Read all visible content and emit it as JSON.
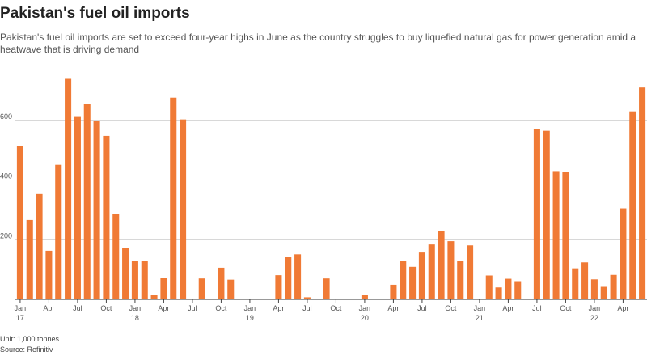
{
  "chart_data": {
    "type": "bar",
    "title": "Pakistan's fuel oil imports",
    "subtitle": "Pakistan's fuel oil imports are set to exceed four-year highs in June as the country struggles to buy liquefied natural gas for power generation amid a heatwave that is driving demand",
    "unit_note": "Unit: 1,000 tonnes",
    "source": "Source: Refinitiv",
    "color": "#f07a35",
    "categories": [
      "Jan\n17",
      null,
      null,
      "Apr",
      null,
      null,
      "Jul",
      null,
      null,
      "Oct",
      null,
      null,
      "Jan\n18",
      null,
      null,
      "Apr",
      null,
      null,
      "Jul",
      null,
      null,
      "Oct",
      null,
      null,
      "Jan\n19",
      null,
      null,
      "Apr",
      null,
      null,
      "Jul",
      null,
      null,
      "Oct",
      null,
      null,
      "Jan\n20",
      null,
      null,
      "Apr",
      null,
      null,
      "Jul",
      null,
      null,
      "Oct",
      null,
      null,
      "Jan\n21",
      null,
      null,
      "Apr",
      null,
      null,
      "Jul",
      null,
      null,
      "Oct",
      null,
      null,
      "Jan\n22",
      null,
      null,
      "Apr",
      null,
      null
    ],
    "values": [
      515,
      266,
      353,
      163,
      451,
      739,
      614,
      655,
      597,
      548,
      285,
      171,
      130,
      130,
      16,
      71,
      676,
      603,
      0,
      70,
      0,
      106,
      66,
      0,
      0,
      0,
      0,
      81,
      141,
      151,
      7,
      0,
      70,
      0,
      0,
      0,
      15,
      0,
      0,
      49,
      130,
      109,
      157,
      184,
      228,
      195,
      130,
      181,
      0,
      80,
      40,
      69,
      61,
      0,
      570,
      565,
      430,
      428,
      104,
      124,
      67,
      42,
      82,
      305,
      630,
      710
    ],
    "ylim": [
      0,
      800
    ],
    "yticks": [
      200,
      400,
      600
    ],
    "grid": true
  }
}
